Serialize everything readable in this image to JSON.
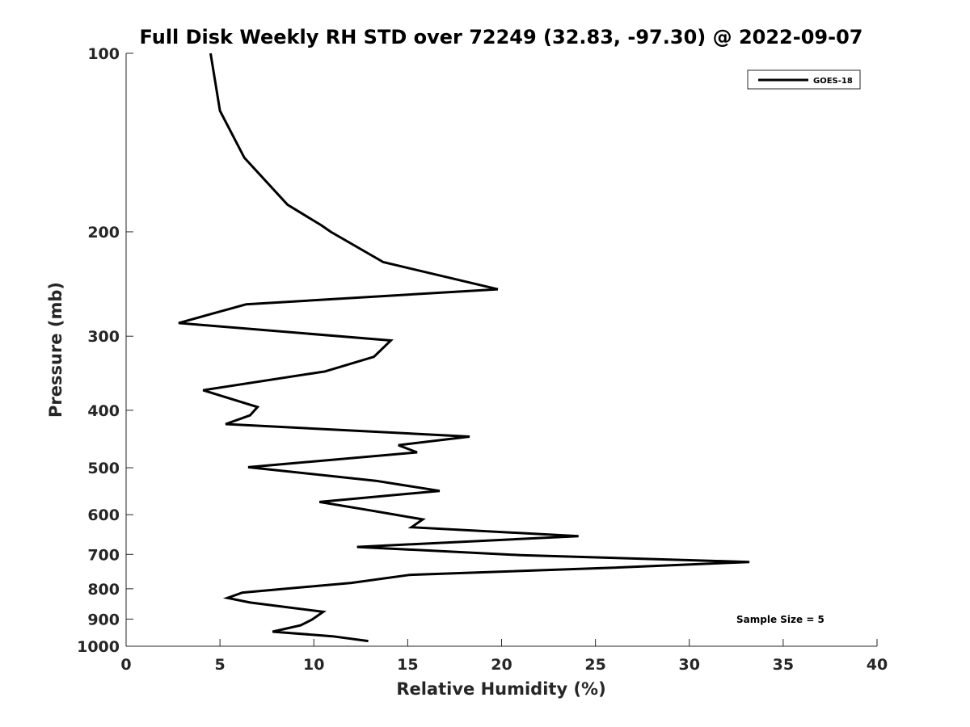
{
  "chart_data": {
    "type": "line",
    "title": "Full Disk Weekly RH STD over 72249 (32.83, -97.30) @ 2022-09-07",
    "xlabel": "Relative Humidity (%)",
    "ylabel": "Pressure (mb)",
    "xlim": [
      0,
      40
    ],
    "ylim": [
      100,
      1000
    ],
    "y_scale": "log",
    "y_reversed": true,
    "x_ticks": [
      0,
      5,
      10,
      15,
      20,
      25,
      30,
      35,
      40
    ],
    "y_ticks": [
      100,
      200,
      300,
      400,
      500,
      600,
      700,
      800,
      900,
      1000
    ],
    "grid": false,
    "legend_position": "top-right",
    "series": [
      {
        "name": "GOES-18",
        "color": "#000000",
        "points": [
          [
            4.5,
            100
          ],
          [
            5.0,
            125
          ],
          [
            6.3,
            150
          ],
          [
            8.6,
            180
          ],
          [
            10.4,
            195
          ],
          [
            10.9,
            200
          ],
          [
            13.7,
            225
          ],
          [
            19.8,
            250
          ],
          [
            6.4,
            265
          ],
          [
            2.8,
            285
          ],
          [
            14.1,
            305
          ],
          [
            13.2,
            325
          ],
          [
            10.6,
            344
          ],
          [
            4.1,
            370
          ],
          [
            7.0,
            395
          ],
          [
            6.6,
            408
          ],
          [
            5.3,
            422
          ],
          [
            18.3,
            443
          ],
          [
            14.5,
            458
          ],
          [
            15.5,
            471
          ],
          [
            6.5,
            499
          ],
          [
            13.3,
            526
          ],
          [
            16.7,
            547
          ],
          [
            10.3,
            571
          ],
          [
            13.0,
            590
          ],
          [
            15.8,
            611
          ],
          [
            15.2,
            630
          ],
          [
            24.1,
            652
          ],
          [
            12.3,
            680
          ],
          [
            21.0,
            702
          ],
          [
            33.2,
            721
          ],
          [
            26.0,
            737
          ],
          [
            15.1,
            758
          ],
          [
            12.0,
            782
          ],
          [
            6.2,
            812
          ],
          [
            5.4,
            829
          ],
          [
            6.6,
            844
          ],
          [
            10.5,
            875
          ],
          [
            9.9,
            902
          ],
          [
            9.3,
            922
          ],
          [
            7.8,
            945
          ],
          [
            11.0,
            962
          ],
          [
            12.9,
            980
          ]
        ]
      }
    ],
    "annotations": [
      "Sample Size = 5"
    ]
  }
}
